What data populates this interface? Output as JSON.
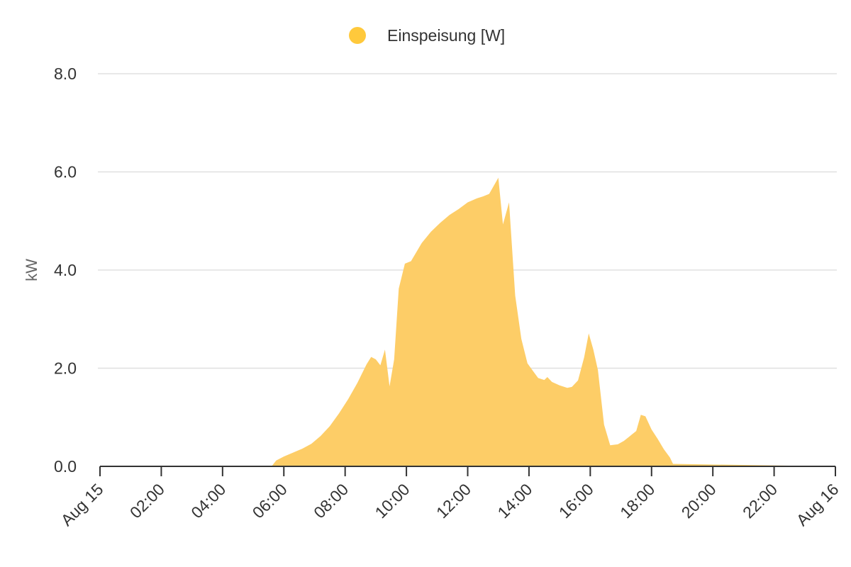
{
  "chart_data": {
    "type": "area",
    "ylabel": "kW",
    "ylim": [
      0,
      8
    ],
    "yticks": [
      "0.0",
      "2.0",
      "4.0",
      "6.0",
      "8.0"
    ],
    "ytick_values": [
      0,
      2,
      4,
      6,
      8
    ],
    "xlim": [
      0,
      24
    ],
    "xticks": [
      "Aug 15",
      "02:00",
      "04:00",
      "06:00",
      "08:00",
      "10:00",
      "12:00",
      "14:00",
      "16:00",
      "18:00",
      "20:00",
      "22:00",
      "Aug 16"
    ],
    "xtick_values": [
      0,
      2,
      4,
      6,
      8,
      10,
      12,
      14,
      16,
      18,
      20,
      22,
      24
    ],
    "x_unit": "hour of day (Aug 15)",
    "grid": true,
    "legend_position": "top-center",
    "series": [
      {
        "name": "Einspeisung [W]",
        "color": "#FFC93C",
        "fill": "#FDCD67",
        "x": [
          0,
          5.6,
          5.75,
          6.0,
          6.3,
          6.6,
          6.9,
          7.2,
          7.5,
          7.8,
          8.1,
          8.4,
          8.7,
          8.85,
          9.0,
          9.15,
          9.3,
          9.45,
          9.6,
          9.75,
          9.95,
          10.15,
          10.5,
          10.8,
          11.1,
          11.4,
          11.7,
          12.0,
          12.3,
          12.5,
          12.7,
          13.0,
          13.15,
          13.35,
          13.55,
          13.75,
          13.95,
          14.1,
          14.3,
          14.5,
          14.6,
          14.75,
          15.0,
          15.25,
          15.4,
          15.6,
          15.8,
          15.95,
          16.1,
          16.25,
          16.45,
          16.65,
          16.9,
          17.1,
          17.3,
          17.5,
          17.65,
          17.8,
          18.0,
          18.2,
          18.4,
          18.6,
          18.7,
          24
        ],
        "values": [
          0,
          0,
          0.12,
          0.2,
          0.28,
          0.36,
          0.46,
          0.62,
          0.82,
          1.08,
          1.37,
          1.7,
          2.08,
          2.23,
          2.18,
          2.06,
          2.38,
          1.63,
          2.18,
          3.62,
          4.13,
          4.18,
          4.55,
          4.78,
          4.96,
          5.12,
          5.24,
          5.38,
          5.46,
          5.5,
          5.55,
          5.88,
          4.93,
          5.38,
          3.48,
          2.6,
          2.1,
          1.97,
          1.8,
          1.76,
          1.82,
          1.72,
          1.65,
          1.6,
          1.62,
          1.75,
          2.22,
          2.71,
          2.38,
          1.96,
          0.85,
          0.43,
          0.45,
          0.52,
          0.62,
          0.72,
          1.05,
          1.02,
          0.75,
          0.56,
          0.35,
          0.18,
          0.05,
          0
        ]
      }
    ]
  }
}
